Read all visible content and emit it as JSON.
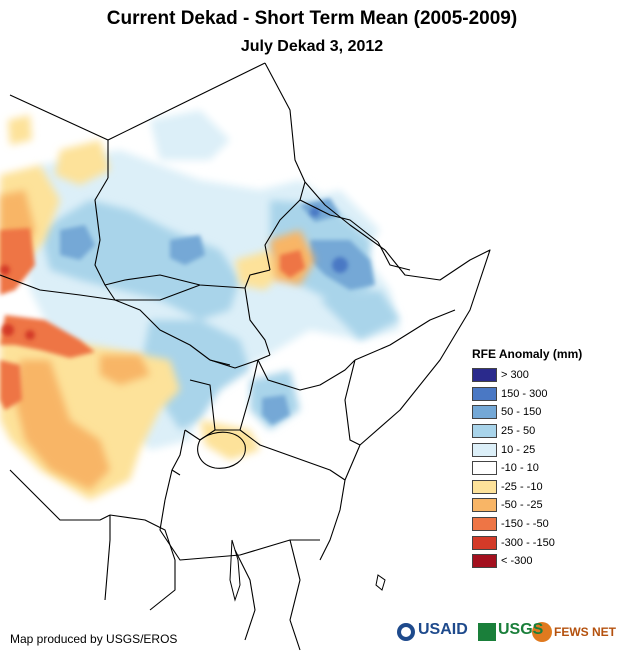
{
  "title": "Current Dekad - Short Term Mean (2005-2009)",
  "subtitle": "July Dekad 3, 2012",
  "legend": {
    "title": "RFE Anomaly (mm)",
    "items": [
      {
        "label": "> 300",
        "color": "#2a2a8c"
      },
      {
        "label": "150 - 300",
        "color": "#4a78c4"
      },
      {
        "label": "50 - 150",
        "color": "#74a8d6"
      },
      {
        "label": "25 - 50",
        "color": "#a9d4ea"
      },
      {
        "label": "10 - 25",
        "color": "#dceff8"
      },
      {
        "label": "-10 - 10",
        "color": "#ffffff"
      },
      {
        "label": "-25 - -10",
        "color": "#fde29a"
      },
      {
        "label": "-50 - -25",
        "color": "#f8b566"
      },
      {
        "label": "-150 - -50",
        "color": "#ee7545"
      },
      {
        "label": "-300 - -150",
        "color": "#d33a28"
      },
      {
        "label": "< -300",
        "color": "#a3101e"
      }
    ]
  },
  "credit": "Map produced by USGS/EROS",
  "logos": {
    "usaid": "USAID",
    "usgs": "USGS",
    "fewsnet": "FEWS NET"
  }
}
